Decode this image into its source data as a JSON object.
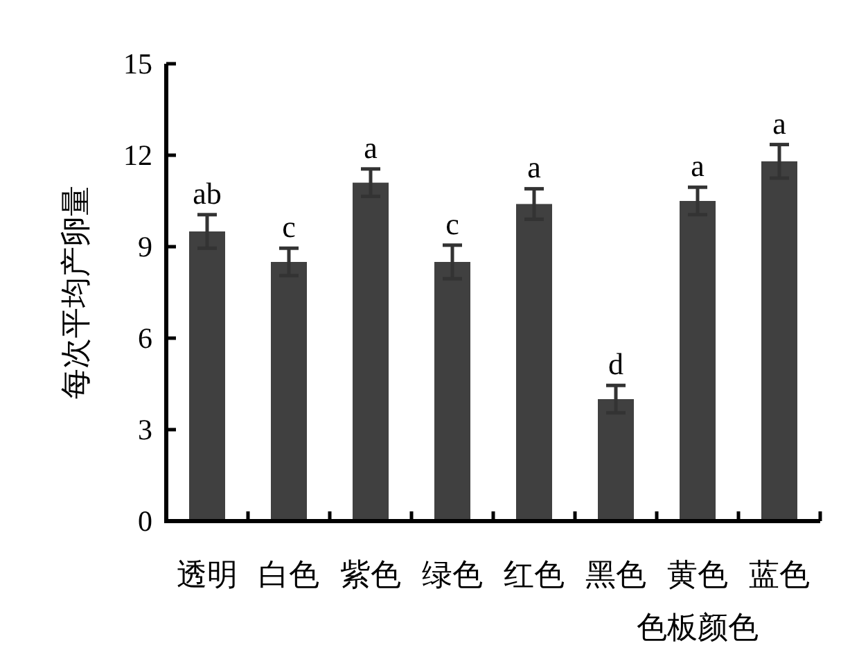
{
  "chart_data": {
    "type": "bar",
    "xlabel": "色板颜色",
    "ylabel": "每次平均产卵量",
    "categories": [
      "透明",
      "白色",
      "紫色",
      "绿色",
      "红色",
      "黑色",
      "黄色",
      "蓝色"
    ],
    "values": [
      9.5,
      8.5,
      11.1,
      8.5,
      10.4,
      4.0,
      10.5,
      11.8
    ],
    "errors": [
      0.55,
      0.45,
      0.45,
      0.55,
      0.5,
      0.45,
      0.45,
      0.55
    ],
    "color": "#404040",
    "ylim": [
      0,
      15
    ],
    "yticks": [
      0,
      3,
      6,
      9,
      12,
      15
    ],
    "grid": false,
    "annotations": [
      {
        "text": "ab",
        "x": "透明",
        "y": 10.05
      },
      {
        "text": "c",
        "x": "白色",
        "y": 8.95
      },
      {
        "text": "a",
        "x": "紫色",
        "y": 11.55
      },
      {
        "text": "c",
        "x": "绿色",
        "y": 9.05
      },
      {
        "text": "a",
        "x": "红色",
        "y": 10.9
      },
      {
        "text": "d",
        "x": "黑色",
        "y": 4.45
      },
      {
        "text": "a",
        "x": "黄色",
        "y": 10.95
      },
      {
        "text": "a",
        "x": "蓝色",
        "y": 12.35
      }
    ]
  }
}
